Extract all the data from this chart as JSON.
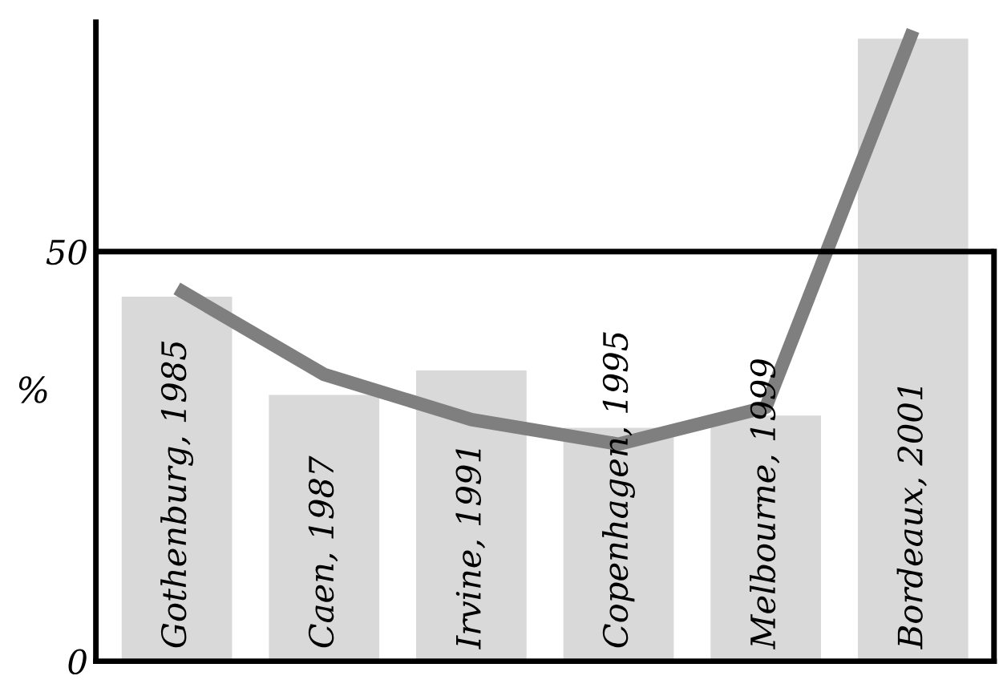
{
  "chart_data": {
    "type": "bar",
    "ylabel": "%",
    "categories": [
      "Gothenburg, 1985",
      "Caen, 1987",
      "Irvine, 1991",
      "Copenhagen, 1995",
      "Melbourne, 1999",
      "Bordeaux, 2001"
    ],
    "series": [
      {
        "color": "#d9d9d9",
        "values": [
          44.5,
          32.5,
          35.5,
          28.5,
          30.0,
          76.0
        ]
      },
      {
        "type": "line",
        "color": "#7f7f7f",
        "values": [
          45.5,
          35.0,
          29.5,
          26.5,
          31.0,
          77.0
        ]
      }
    ],
    "ylim": [
      0,
      78
    ],
    "yticks": [
      0,
      50
    ],
    "ref_lines": [
      {
        "axis": "y",
        "value": 50,
        "color": "#000000"
      }
    ]
  }
}
